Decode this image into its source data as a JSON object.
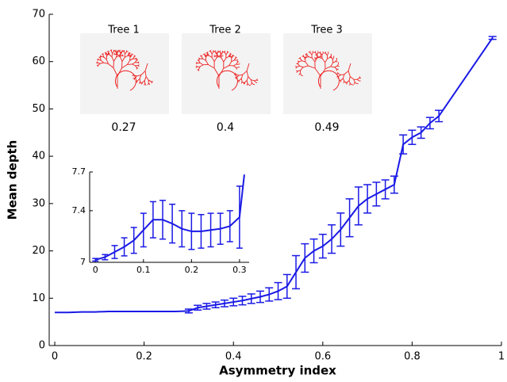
{
  "chart_data": [
    {
      "type": "line",
      "xlabel": "Asymmetry index",
      "ylabel": "Mean depth",
      "x": [
        0,
        0.03,
        0.06,
        0.09,
        0.12,
        0.15,
        0.18,
        0.21,
        0.24,
        0.27,
        0.3,
        0.32,
        0.34,
        0.36,
        0.38,
        0.4,
        0.42,
        0.44,
        0.46,
        0.48,
        0.5,
        0.52,
        0.54,
        0.56,
        0.58,
        0.6,
        0.62,
        0.64,
        0.66,
        0.68,
        0.7,
        0.72,
        0.74,
        0.76,
        0.78,
        0.8,
        0.82,
        0.84,
        0.86,
        0.98
      ],
      "series": [
        {
          "color": "#1a1ae6",
          "values": [
            7.0,
            7.0,
            7.1,
            7.1,
            7.2,
            7.2,
            7.2,
            7.2,
            7.2,
            7.2,
            7.3,
            8.0,
            8.3,
            8.6,
            8.9,
            9.2,
            9.5,
            9.9,
            10.3,
            10.8,
            11.5,
            12.5,
            15.5,
            18.5,
            20.0,
            21.0,
            22.5,
            24.5,
            27.0,
            29.5,
            31.0,
            32.0,
            33.0,
            34.0,
            42.5,
            44.0,
            45.0,
            47.0,
            48.5,
            65.0
          ],
          "errors": [
            null,
            null,
            null,
            null,
            null,
            null,
            null,
            null,
            null,
            null,
            0.4,
            0.5,
            0.6,
            0.6,
            0.7,
            0.8,
            0.9,
            1.0,
            1.2,
            1.4,
            1.8,
            2.5,
            3.5,
            3.0,
            2.5,
            2.5,
            3.0,
            3.5,
            4.0,
            4.0,
            3.0,
            2.5,
            2.0,
            1.8,
            2.0,
            1.5,
            1.2,
            1.2,
            1.2,
            0.3
          ]
        }
      ],
      "xlim": [
        -0.0125,
        1.0
      ],
      "xticks": [
        0,
        0.2,
        0.4,
        0.6,
        0.8,
        1
      ],
      "ylim": [
        0,
        70
      ],
      "yticks": [
        0,
        10,
        20,
        30,
        40,
        50,
        60,
        70
      ],
      "annotations": [
        {
          "label": "Tree 1",
          "value": "0.27"
        },
        {
          "label": "Tree 2",
          "value": "0.4"
        },
        {
          "label": "Tree 3",
          "value": "0.49"
        }
      ]
    },
    {
      "type": "line",
      "x": [
        0,
        0.02,
        0.04,
        0.06,
        0.08,
        0.1,
        0.12,
        0.14,
        0.16,
        0.18,
        0.2,
        0.22,
        0.24,
        0.26,
        0.28,
        0.3,
        0.31
      ],
      "series": [
        {
          "color": "#1a1ae6",
          "values": [
            7.02,
            7.04,
            7.08,
            7.12,
            7.17,
            7.25,
            7.33,
            7.33,
            7.3,
            7.26,
            7.24,
            7.24,
            7.25,
            7.26,
            7.28,
            7.35,
            7.68
          ],
          "errors": [
            0.01,
            0.02,
            0.05,
            0.07,
            0.1,
            0.13,
            0.14,
            0.15,
            0.15,
            0.14,
            0.14,
            0.13,
            0.13,
            0.12,
            0.12,
            0.24,
            null
          ]
        }
      ],
      "xlim": [
        -0.012,
        0.32
      ],
      "xticks": [
        0,
        0.1,
        0.2,
        0.3
      ],
      "ylim": [
        7,
        7.7
      ],
      "yticks": [
        7,
        7.4,
        7.7
      ]
    }
  ]
}
